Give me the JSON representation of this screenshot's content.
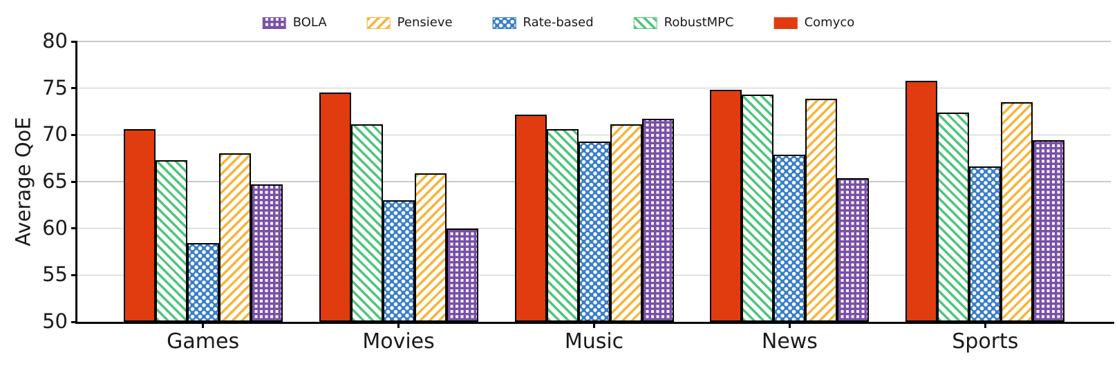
{
  "chart_data": {
    "type": "bar",
    "title": "",
    "xlabel": "",
    "ylabel": "Average QoE",
    "ylim": [
      50,
      80
    ],
    "yticks": [
      50,
      55,
      60,
      65,
      70,
      75,
      80
    ],
    "grid": "horizontal",
    "categories": [
      "Games",
      "Movies",
      "Music",
      "News",
      "Sports"
    ],
    "bar_order": [
      "Comyco",
      "RobustMPC",
      "Rate-based",
      "Pensieve",
      "BOLA"
    ],
    "legend": {
      "position": "top-center",
      "entries": [
        "BOLA",
        "Pensieve",
        "Rate-based",
        "RobustMPC",
        "Comyco"
      ]
    },
    "series": [
      {
        "name": "BOLA",
        "color": "#7A50A8",
        "pattern": "plaid",
        "values": [
          64.7,
          60.0,
          71.7,
          65.4,
          69.4
        ]
      },
      {
        "name": "Pensieve",
        "color": "#F8B43A",
        "pattern": "diagonal-forward",
        "values": [
          68.0,
          65.9,
          71.1,
          73.9,
          73.5
        ]
      },
      {
        "name": "Rate-based",
        "color": "#3A7EC8",
        "pattern": "dots-cross",
        "values": [
          58.4,
          63.0,
          69.3,
          67.9,
          66.6
        ]
      },
      {
        "name": "RobustMPC",
        "color": "#4FC57C",
        "pattern": "diagonal-back",
        "values": [
          67.3,
          71.1,
          70.6,
          74.3,
          72.4
        ]
      },
      {
        "name": "Comyco",
        "color": "#E03C10",
        "pattern": "solid",
        "values": [
          70.6,
          74.5,
          72.2,
          74.8,
          75.8
        ]
      }
    ],
    "style": {
      "bar_edge_color": "#000000",
      "gridline_color": "#c9c9c9",
      "background": "#ffffff"
    }
  }
}
